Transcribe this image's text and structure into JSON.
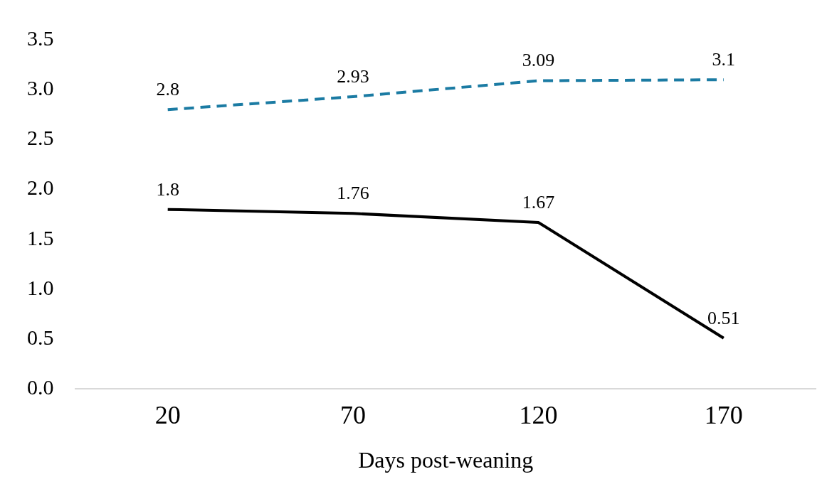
{
  "chart_data": {
    "type": "line",
    "xlabel": "Days post-weaning",
    "categories": [
      "20",
      "70",
      "120",
      "170"
    ],
    "series": [
      {
        "color": "#1b7ba3",
        "values": [
          2.8,
          2.93,
          3.09,
          3.1
        ],
        "line_style": "dashed"
      },
      {
        "color": "#000000",
        "values": [
          1.8,
          1.76,
          1.67,
          0.51
        ],
        "line_style": "solid"
      }
    ],
    "ylim": [
      0,
      3.5
    ],
    "yticks": [
      {
        "value": 0,
        "label": "0.0"
      },
      {
        "value": 0.5,
        "label": "0.5"
      },
      {
        "value": 1,
        "label": "1.0"
      },
      {
        "value": 1.5,
        "label": "1.5"
      },
      {
        "value": 2,
        "label": "2.0"
      },
      {
        "value": 2.5,
        "label": "2.5"
      },
      {
        "value": 3,
        "label": "3.0"
      },
      {
        "value": 3.5,
        "label": "3.5"
      }
    ],
    "grid": false,
    "legend": false,
    "marker": "none",
    "data_labels": true
  }
}
